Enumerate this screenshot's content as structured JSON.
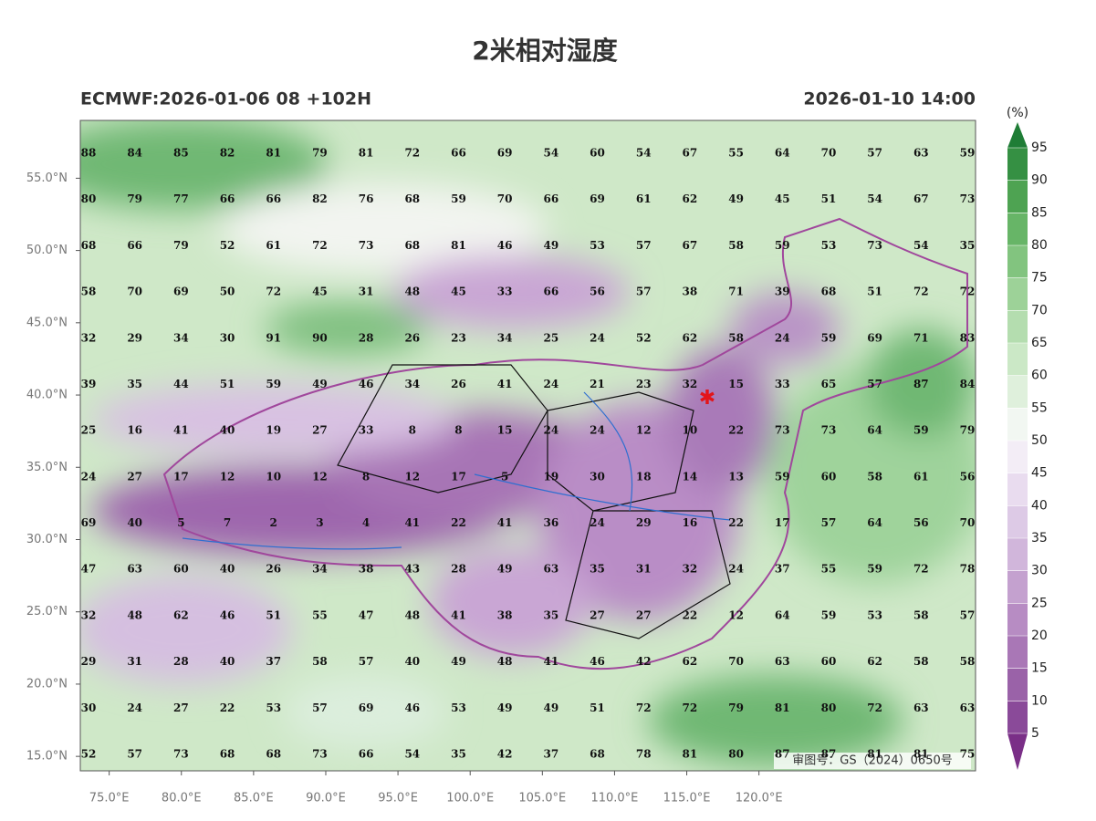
{
  "title": "2米相对湿度",
  "model_label": "ECMWF:2026-01-06 08 +102H",
  "valid_time": "2026-01-10 14:00",
  "map": {
    "xlim": [
      73,
      135
    ],
    "ylim": [
      14,
      59
    ],
    "xticks": [
      {
        "value": 75,
        "label": "75.0°E"
      },
      {
        "value": 80,
        "label": "80.0°E"
      },
      {
        "value": 85,
        "label": "85.0°E"
      },
      {
        "value": 90,
        "label": "90.0°E"
      },
      {
        "value": 95,
        "label": "95.0°E"
      },
      {
        "value": 100,
        "label": "100.0°E"
      },
      {
        "value": 105,
        "label": "105.0°E"
      },
      {
        "value": 110,
        "label": "110.0°E"
      },
      {
        "value": 115,
        "label": "115.0°E"
      },
      {
        "value": 120,
        "label": "120.0°E"
      }
    ],
    "yticks": [
      {
        "value": 15,
        "label": "15.0°N"
      },
      {
        "value": 20,
        "label": "20.0°N"
      },
      {
        "value": 25,
        "label": "25.0°N"
      },
      {
        "value": 30,
        "label": "30.0°N"
      },
      {
        "value": 35,
        "label": "35.0°N"
      },
      {
        "value": 40,
        "label": "40.0°N"
      },
      {
        "value": 45,
        "label": "45.0°N"
      },
      {
        "value": 50,
        "label": "50.0°N"
      },
      {
        "value": 55,
        "label": "55.0°N"
      }
    ],
    "values": [
      [
        88,
        84,
        85,
        82,
        81,
        79,
        81,
        72,
        66,
        69,
        54,
        60,
        54,
        67,
        55,
        64,
        70,
        57,
        63,
        59
      ],
      [
        80,
        79,
        77,
        66,
        66,
        82,
        76,
        68,
        59,
        70,
        66,
        69,
        61,
        62,
        49,
        45,
        51,
        54,
        67,
        73
      ],
      [
        68,
        66,
        79,
        52,
        61,
        72,
        73,
        68,
        81,
        46,
        49,
        53,
        57,
        67,
        58,
        59,
        53,
        73,
        54,
        35
      ],
      [
        58,
        70,
        69,
        50,
        72,
        45,
        31,
        48,
        45,
        33,
        66,
        56,
        57,
        38,
        71,
        39,
        68,
        51,
        72,
        72
      ],
      [
        32,
        29,
        34,
        30,
        91,
        90,
        28,
        26,
        23,
        34,
        25,
        24,
        52,
        62,
        58,
        24,
        59,
        69,
        71,
        83
      ],
      [
        39,
        35,
        44,
        51,
        59,
        49,
        46,
        34,
        26,
        41,
        24,
        21,
        23,
        32,
        15,
        33,
        65,
        57,
        87,
        84
      ],
      [
        25,
        16,
        41,
        40,
        19,
        27,
        33,
        8,
        8,
        15,
        24,
        24,
        12,
        10,
        22,
        73,
        73,
        64,
        59,
        79
      ],
      [
        24,
        27,
        17,
        12,
        10,
        12,
        8,
        12,
        17,
        5,
        19,
        30,
        18,
        14,
        13,
        59,
        60,
        58,
        61,
        56
      ],
      [
        69,
        40,
        5,
        7,
        2,
        3,
        4,
        41,
        22,
        41,
        36,
        24,
        29,
        16,
        22,
        17,
        57,
        64,
        56,
        70
      ],
      [
        47,
        63,
        60,
        40,
        26,
        34,
        38,
        43,
        28,
        49,
        63,
        35,
        31,
        32,
        24,
        37,
        55,
        59,
        72,
        78
      ],
      [
        32,
        48,
        62,
        46,
        51,
        55,
        47,
        48,
        41,
        38,
        35,
        27,
        27,
        22,
        12,
        64,
        59,
        53,
        58,
        57
      ],
      [
        29,
        31,
        28,
        40,
        37,
        58,
        57,
        40,
        49,
        48,
        41,
        46,
        42,
        62,
        70,
        63,
        60,
        62,
        58,
        58
      ],
      [
        30,
        24,
        27,
        22,
        53,
        57,
        69,
        46,
        53,
        49,
        49,
        51,
        72,
        72,
        79,
        81,
        80,
        72,
        63,
        63
      ],
      [
        52,
        57,
        73,
        68,
        68,
        73,
        66,
        54,
        35,
        42,
        37,
        68,
        78,
        81,
        80,
        87,
        87,
        81,
        81,
        75
      ]
    ],
    "approval": "审图号：GS（2024）0650号"
  },
  "colorbar": {
    "unit": "(%)",
    "lim": [
      5,
      95
    ],
    "ticks": [
      5,
      10,
      15,
      20,
      25,
      30,
      35,
      40,
      45,
      50,
      55,
      60,
      65,
      70,
      75,
      80,
      85,
      90,
      95
    ],
    "colors": [
      "#7a2f87",
      "#8a4a99",
      "#9a62a8",
      "#a977b6",
      "#b78cc3",
      "#c4a1cf",
      "#d1b6db",
      "#ddcae6",
      "#e9dcef",
      "#f3edf6",
      "#f2f7f2",
      "#dff0dc",
      "#cbe8c6",
      "#b4ddaf",
      "#9dd298",
      "#82c47f",
      "#67b567",
      "#4ea352",
      "#359043",
      "#1f7d36"
    ]
  }
}
